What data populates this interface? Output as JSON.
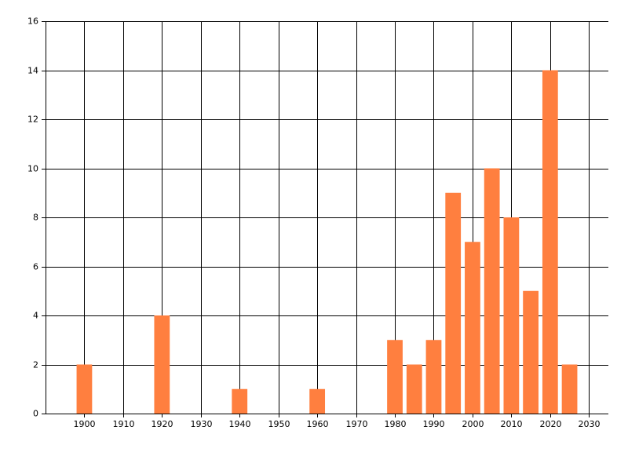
{
  "chart_data": {
    "type": "bar",
    "x": [
      1900,
      1920,
      1940,
      1960,
      1980,
      1985,
      1990,
      1995,
      2000,
      2005,
      2010,
      2015,
      2020,
      2025
    ],
    "values": [
      2,
      4,
      1,
      1,
      3,
      2,
      3,
      9,
      7,
      10,
      8,
      5,
      14,
      2
    ],
    "color": "#ff7f3f",
    "xlim": [
      1890,
      2035
    ],
    "xticks": [
      1900,
      1910,
      1920,
      1930,
      1940,
      1950,
      1960,
      1970,
      1980,
      1990,
      2000,
      2010,
      2020,
      2030
    ],
    "ylim": [
      0,
      16
    ],
    "yticks": [
      0,
      2,
      4,
      6,
      8,
      10,
      12,
      14,
      16
    ],
    "grid": true
  }
}
